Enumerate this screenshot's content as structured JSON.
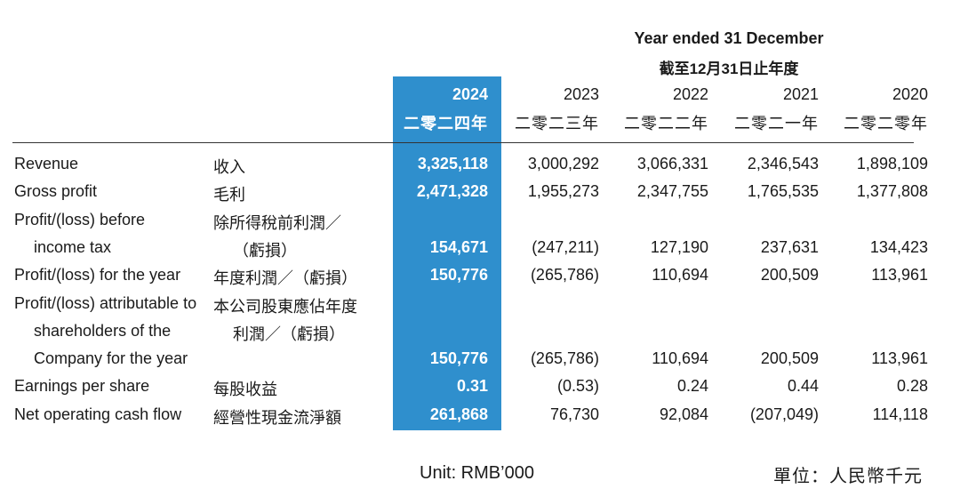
{
  "header": {
    "period_en": "Year ended 31 December",
    "period_zh": "截至12月31日止年度",
    "years": [
      {
        "en": "2024",
        "zh": "二零二四年",
        "highlight": true
      },
      {
        "en": "2023",
        "zh": "二零二三年",
        "highlight": false
      },
      {
        "en": "2022",
        "zh": "二零二二年",
        "highlight": false
      },
      {
        "en": "2021",
        "zh": "二零二一年",
        "highlight": false
      },
      {
        "en": "2020",
        "zh": "二零二零年",
        "highlight": false
      }
    ]
  },
  "rows": [
    {
      "en": [
        "Revenue"
      ],
      "zh": [
        "收入"
      ],
      "values": [
        "3,325,118",
        "3,000,292",
        "3,066,331",
        "2,346,543",
        "1,898,109"
      ]
    },
    {
      "en": [
        "Gross profit"
      ],
      "zh": [
        "毛利"
      ],
      "values": [
        "2,471,328",
        "1,955,273",
        "2,347,755",
        "1,765,535",
        "1,377,808"
      ]
    },
    {
      "en": [
        "Profit/(loss) before",
        "income tax"
      ],
      "zh": [
        "除所得稅前利潤／",
        "（虧損）"
      ],
      "values": [
        "154,671",
        "(247,211)",
        "127,190",
        "237,631",
        "134,423"
      ]
    },
    {
      "en": [
        "Profit/(loss) for the year"
      ],
      "zh": [
        "年度利潤／（虧損）"
      ],
      "values": [
        "150,776",
        "(265,786)",
        "110,694",
        "200,509",
        "113,961"
      ]
    },
    {
      "en": [
        "Profit/(loss) attributable to",
        "shareholders of the",
        "Company for the year"
      ],
      "zh": [
        "本公司股東應佔年度",
        "利潤／（虧損）"
      ],
      "values": [
        "150,776",
        "(265,786)",
        "110,694",
        "200,509",
        "113,961"
      ]
    },
    {
      "en": [
        "Earnings per share"
      ],
      "zh": [
        "每股收益"
      ],
      "values": [
        "0.31",
        "(0.53)",
        "0.24",
        "0.44",
        "0.28"
      ]
    },
    {
      "en": [
        "Net operating cash flow"
      ],
      "zh": [
        "經營性現金流淨額"
      ],
      "values": [
        "261,868",
        "76,730",
        "92,084",
        "(207,049)",
        "114,118"
      ]
    }
  ],
  "footer": {
    "unit_en": "Unit: RMB’000",
    "unit_zh": "單位：人民幣千元"
  },
  "colors": {
    "highlight_column": "#2f8fcd",
    "highlight_text": "#ffffff",
    "body_text": "#1a1a1a"
  }
}
